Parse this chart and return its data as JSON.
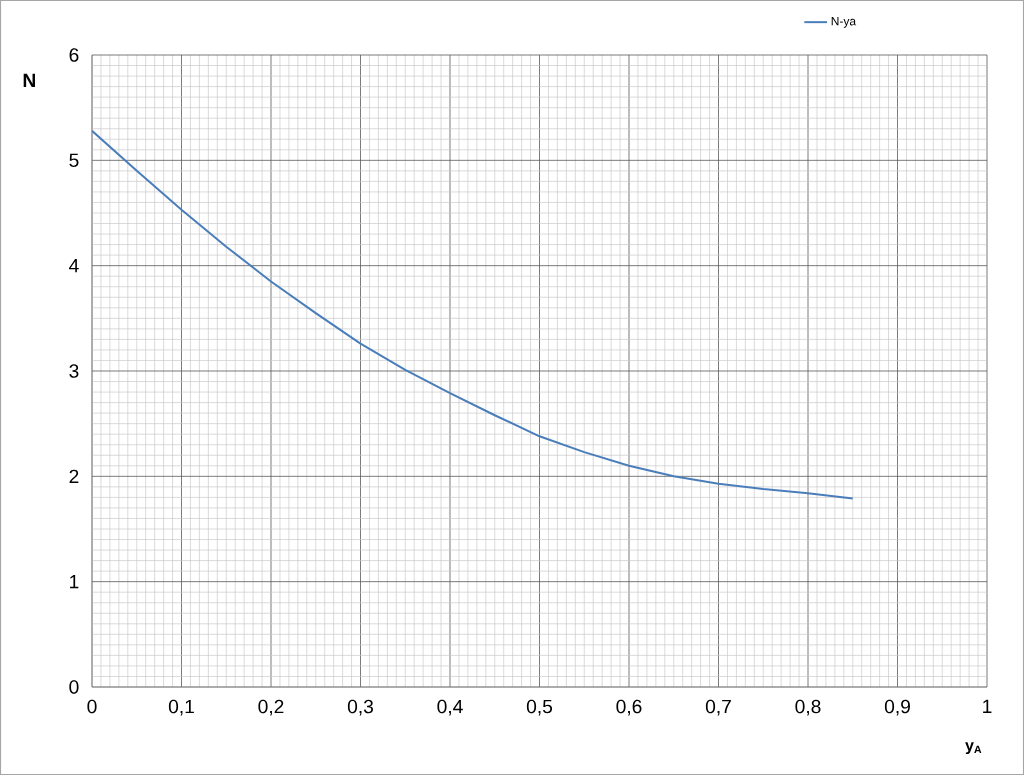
{
  "chart_data": {
    "type": "line",
    "xlabel": "y$_{A}$",
    "ylabel": "N",
    "x": [
      0,
      0.05,
      0.1,
      0.15,
      0.2,
      0.25,
      0.3,
      0.35,
      0.4,
      0.45,
      0.5,
      0.55,
      0.6,
      0.65,
      0.7,
      0.75,
      0.8,
      0.85
    ],
    "series": [
      {
        "name": "N-ya",
        "color": "#4a7ebb",
        "values": [
          5.28,
          4.9,
          4.53,
          4.18,
          3.85,
          3.55,
          3.26,
          3.01,
          2.79,
          2.58,
          2.38,
          2.23,
          2.1,
          2.0,
          1.93,
          1.88,
          1.84,
          1.79
        ]
      }
    ],
    "xlim": [
      0,
      1
    ],
    "ylim": [
      0,
      6
    ],
    "xticks": [
      0,
      {
        "value": 0.1,
        "label": "0,1"
      },
      {
        "value": 0.2,
        "label": "0,2"
      },
      {
        "value": 0.3,
        "label": "0,3"
      },
      {
        "value": 0.4,
        "label": "0,4"
      },
      {
        "value": 0.5,
        "label": "0,5"
      },
      {
        "value": 0.6,
        "label": "0,6"
      },
      {
        "value": 0.7,
        "label": "0,7"
      },
      {
        "value": 0.8,
        "label": "0,8"
      },
      {
        "value": 0.9,
        "label": "0,9"
      },
      1
    ],
    "yticks": [
      0,
      1,
      2,
      3,
      4,
      5,
      6
    ],
    "grid": true,
    "legend": "top right",
    "marker": "none",
    "line_style": "solid"
  }
}
